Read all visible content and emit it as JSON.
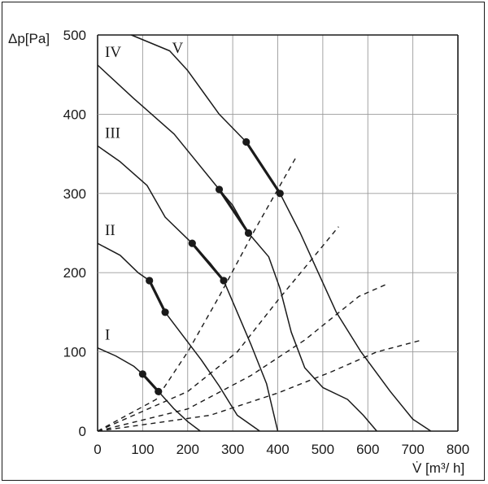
{
  "chart_data": {
    "type": "line",
    "title": "",
    "xlabel": "V̇ [m³/ h]",
    "ylabel": "Δp[Pa]",
    "xlim": [
      0,
      800
    ],
    "ylim": [
      0,
      500
    ],
    "x_ticks": [
      "0",
      "100",
      "200",
      "300",
      "400",
      "500",
      "600",
      "700",
      "800"
    ],
    "y_ticks": [
      "0",
      "100",
      "200",
      "300",
      "400",
      "500"
    ],
    "grid": true,
    "fan_curves": [
      {
        "name": "I",
        "points": [
          [
            0,
            105
          ],
          [
            40,
            95
          ],
          [
            80,
            82
          ],
          [
            100,
            72
          ],
          [
            135,
            50
          ],
          [
            170,
            28
          ],
          [
            200,
            12
          ],
          [
            228,
            0
          ]
        ],
        "operating_range": [
          [
            100,
            72
          ],
          [
            135,
            50
          ]
        ]
      },
      {
        "name": "II",
        "points": [
          [
            0,
            237
          ],
          [
            50,
            222
          ],
          [
            90,
            200
          ],
          [
            115,
            190
          ],
          [
            150,
            150
          ],
          [
            190,
            120
          ],
          [
            230,
            90
          ],
          [
            270,
            57
          ],
          [
            310,
            20
          ],
          [
            360,
            0
          ]
        ],
        "operating_range": [
          [
            115,
            190
          ],
          [
            150,
            150
          ]
        ]
      },
      {
        "name": "III",
        "points": [
          [
            0,
            360
          ],
          [
            50,
            340
          ],
          [
            110,
            310
          ],
          [
            150,
            270
          ],
          [
            210,
            237
          ],
          [
            250,
            212
          ],
          [
            280,
            190
          ],
          [
            310,
            150
          ],
          [
            340,
            110
          ],
          [
            375,
            60
          ],
          [
            400,
            0
          ]
        ],
        "operating_range": [
          [
            210,
            237
          ],
          [
            280,
            190
          ]
        ]
      },
      {
        "name": "IV",
        "points": [
          [
            0,
            462
          ],
          [
            80,
            420
          ],
          [
            170,
            375
          ],
          [
            220,
            340
          ],
          [
            270,
            305
          ],
          [
            300,
            285
          ],
          [
            335,
            250
          ],
          [
            380,
            220
          ],
          [
            405,
            180
          ],
          [
            430,
            125
          ],
          [
            460,
            80
          ],
          [
            500,
            55
          ],
          [
            555,
            40
          ],
          [
            590,
            20
          ],
          [
            620,
            0
          ]
        ],
        "operating_range": [
          [
            270,
            305
          ],
          [
            335,
            250
          ]
        ]
      },
      {
        "name": "V",
        "points": [
          [
            75,
            500
          ],
          [
            160,
            480
          ],
          [
            200,
            455
          ],
          [
            270,
            400
          ],
          [
            330,
            365
          ],
          [
            405,
            300
          ],
          [
            450,
            250
          ],
          [
            490,
            200
          ],
          [
            530,
            150
          ],
          [
            585,
            100
          ],
          [
            650,
            50
          ],
          [
            700,
            15
          ],
          [
            740,
            0
          ]
        ],
        "operating_range": [
          [
            330,
            365
          ],
          [
            405,
            300
          ]
        ]
      }
    ],
    "system_curves": [
      {
        "points": [
          [
            0,
            0
          ],
          [
            130,
            40
          ],
          [
            200,
            100
          ],
          [
            270,
            170
          ],
          [
            350,
            255
          ],
          [
            440,
            345
          ]
        ]
      },
      {
        "points": [
          [
            0,
            0
          ],
          [
            200,
            50
          ],
          [
            310,
            100
          ],
          [
            400,
            165
          ],
          [
            480,
            220
          ],
          [
            535,
            258
          ]
        ]
      },
      {
        "points": [
          [
            0,
            0
          ],
          [
            200,
            28
          ],
          [
            340,
            70
          ],
          [
            460,
            115
          ],
          [
            580,
            170
          ],
          [
            640,
            185
          ]
        ]
      },
      {
        "points": [
          [
            0,
            0
          ],
          [
            250,
            20
          ],
          [
            400,
            48
          ],
          [
            520,
            75
          ],
          [
            620,
            100
          ],
          [
            720,
            115
          ]
        ]
      }
    ]
  }
}
